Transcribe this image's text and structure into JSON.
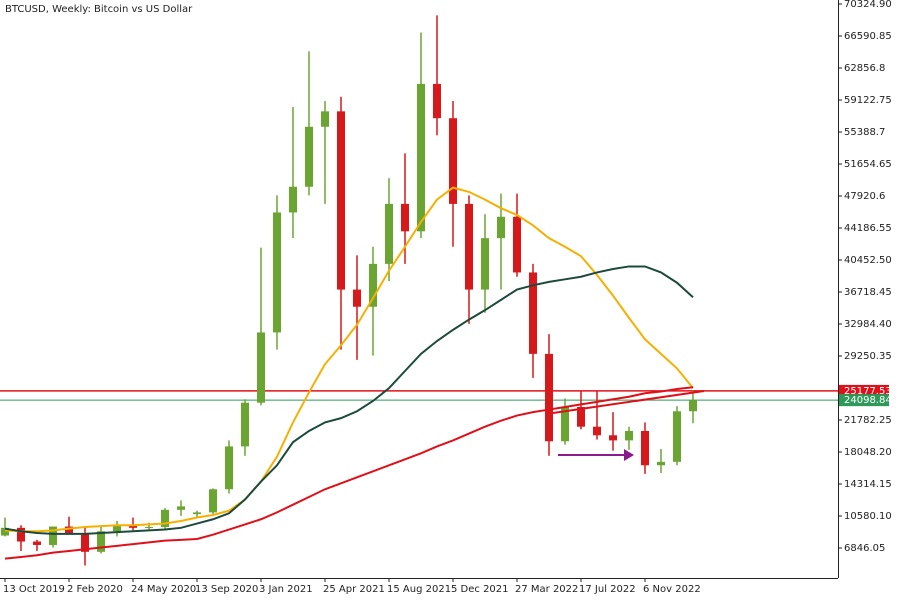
{
  "chart_data": {
    "type": "candlestick",
    "title": "BTCUSD, Weekly:  Bitcoin vs US Dollar",
    "categories": [
      "13 Oct 2019",
      null,
      null,
      null,
      "2 Feb 2020",
      null,
      null,
      null,
      "24 May 2020",
      null,
      null,
      null,
      "13 Sep 2020",
      null,
      null,
      null,
      "3 Jan 2021",
      null,
      null,
      null,
      "25 Apr 2021",
      null,
      null,
      null,
      "15 Aug 2021",
      null,
      null,
      null,
      "5 Dec 2021",
      null,
      null,
      null,
      "27 Mar 2022",
      null,
      null,
      null,
      "17 Jul 2022",
      null,
      null,
      null,
      "6 Nov 2022",
      null,
      null,
      null
    ],
    "open": [
      8300,
      9200,
      7600,
      7200,
      9350,
      8600,
      6400,
      8800,
      9500,
      9200,
      9300,
      11300,
      10800,
      11000,
      13700,
      18700,
      23800,
      32000,
      46000,
      49000,
      56000,
      57800,
      37000,
      35000,
      40000,
      47000,
      43800,
      61000,
      57000,
      47000,
      37000,
      43000,
      45500,
      39000,
      29500,
      19300,
      23300,
      21000,
      20000,
      19400,
      20500,
      16500,
      16900,
      22800
    ],
    "high": [
      10400,
      9500,
      7800,
      9200,
      10500,
      9200,
      9400,
      10000,
      10400,
      9800,
      11500,
      12400,
      11200,
      13800,
      19400,
      24200,
      41900,
      48000,
      58300,
      64800,
      59000,
      59500,
      41000,
      42000,
      50000,
      52900,
      67000,
      69000,
      59000,
      48000,
      45800,
      48200,
      48200,
      40000,
      31800,
      24300,
      25200,
      25200,
      22700,
      21000,
      21500,
      18400,
      23400,
      25200
    ],
    "low": [
      8200,
      6500,
      6500,
      6900,
      8500,
      4800,
      6200,
      8200,
      8900,
      8900,
      9000,
      10600,
      10300,
      10800,
      13200,
      17600,
      23500,
      30000,
      43000,
      48000,
      47000,
      30000,
      28800,
      29300,
      38000,
      40000,
      43000,
      55000,
      42000,
      33000,
      34300,
      37000,
      38500,
      26700,
      17600,
      18900,
      20700,
      19500,
      18200,
      18300,
      15500,
      15600,
      16500,
      21400
    ],
    "close": [
      9200,
      7600,
      7200,
      9350,
      8600,
      6400,
      8800,
      9500,
      9200,
      9300,
      11300,
      11700,
      11000,
      13700,
      18700,
      23800,
      32000,
      46000,
      49000,
      56000,
      57800,
      37000,
      35000,
      40000,
      47000,
      43800,
      61000,
      57000,
      47000,
      37000,
      43000,
      45500,
      39000,
      29500,
      19300,
      23300,
      21000,
      20000,
      19400,
      20500,
      16500,
      16900,
      22800,
      24100
    ],
    "up_color": "#6aa532",
    "down_color": "#d8191c",
    "lines": [
      {
        "color": "#f5b000",
        "values": [
          8900,
          8800,
          8800,
          8900,
          9100,
          9300,
          9400,
          9500,
          9500,
          9600,
          9700,
          10000,
          10400,
          10700,
          11200,
          12500,
          14600,
          17500,
          21500,
          25000,
          28300,
          30500,
          32900,
          36000,
          39200,
          42000,
          44900,
          47500,
          48900,
          48400,
          47500,
          46500,
          45700,
          44500,
          43000,
          42000,
          40900,
          38700,
          36300,
          33700,
          31200,
          29500,
          27800,
          25500
        ]
      },
      {
        "color": "#1c4a3c",
        "values": [
          9100,
          8800,
          8600,
          8500,
          8500,
          8500,
          8600,
          8700,
          8800,
          8900,
          9000,
          9200,
          9700,
          10200,
          10900,
          12500,
          14600,
          16500,
          19200,
          20500,
          21500,
          22000,
          22800,
          24000,
          25500,
          27500,
          29500,
          31000,
          32300,
          33500,
          34600,
          35800,
          37000,
          37500,
          37900,
          38200,
          38500,
          39000,
          39400,
          39700,
          39700,
          39000,
          37800,
          36100
        ]
      },
      {
        "color": "#e0101a",
        "values": [
          5600,
          5800,
          6000,
          6300,
          6500,
          6700,
          6900,
          7100,
          7300,
          7500,
          7700,
          7800,
          7900,
          8400,
          9000,
          9600,
          10200,
          11000,
          11900,
          12800,
          13700,
          14400,
          15100,
          15800,
          16500,
          17200,
          17900,
          18700,
          19400,
          20200,
          21000,
          21700,
          22300,
          22700,
          23000,
          23300,
          23600,
          23900,
          24200,
          24500,
          24900,
          25100,
          25400,
          25600
        ]
      }
    ],
    "levels": [
      {
        "value": 25177.53,
        "color": "#e0101a"
      },
      {
        "value": 24098.84,
        "color": "#2e9a5a"
      }
    ],
    "ylim": [
      3345,
      70792
    ],
    "yticks": [
      {
        "value": 70324.9,
        "label": "70324.90"
      },
      66590.85,
      62856.8,
      59122.75,
      55388.7,
      51654.65,
      47920.6,
      44186.55,
      {
        "value": 40452.5,
        "label": "40452.50"
      },
      36718.45,
      {
        "value": 32984.4,
        "label": "32984.40"
      },
      29250.35,
      21782.25,
      {
        "value": 18048.2,
        "label": "18048.20"
      },
      14314.15,
      {
        "value": 10580.1,
        "label": "10580.10"
      },
      6846.05
    ]
  }
}
